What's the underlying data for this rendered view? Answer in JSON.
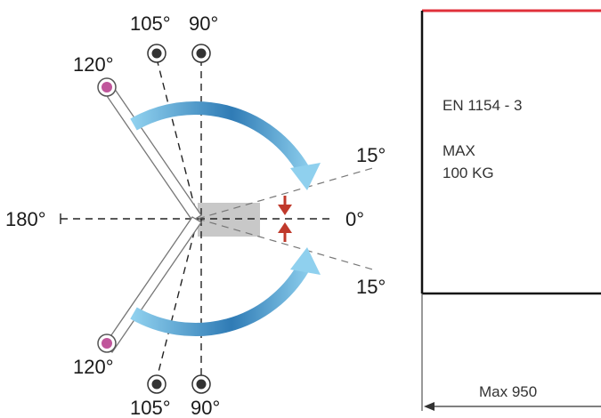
{
  "angles": {
    "a105_top": "105°",
    "a90_top": "90°",
    "a120_top": "120°",
    "a15_top": "15°",
    "a180": "180°",
    "a0": "0°",
    "a15_bottom": "15°",
    "a120_bottom": "120°",
    "a105_bottom": "105°",
    "a90_bottom": "90°"
  },
  "panel": {
    "standard": "EN 1154 - 3",
    "max_line1": "MAX",
    "max_line2": "100 KG"
  },
  "dimension": {
    "label": "Max 950"
  },
  "colors": {
    "arc_light": "#8fd0ee",
    "arc_dark": "#2f7bb5",
    "red_arrow": "#c0392b",
    "pink_dot": "#c0569b",
    "dark_dot": "#333333",
    "top_border": "#e0303a",
    "sector_gray": "#c8c8c8"
  }
}
